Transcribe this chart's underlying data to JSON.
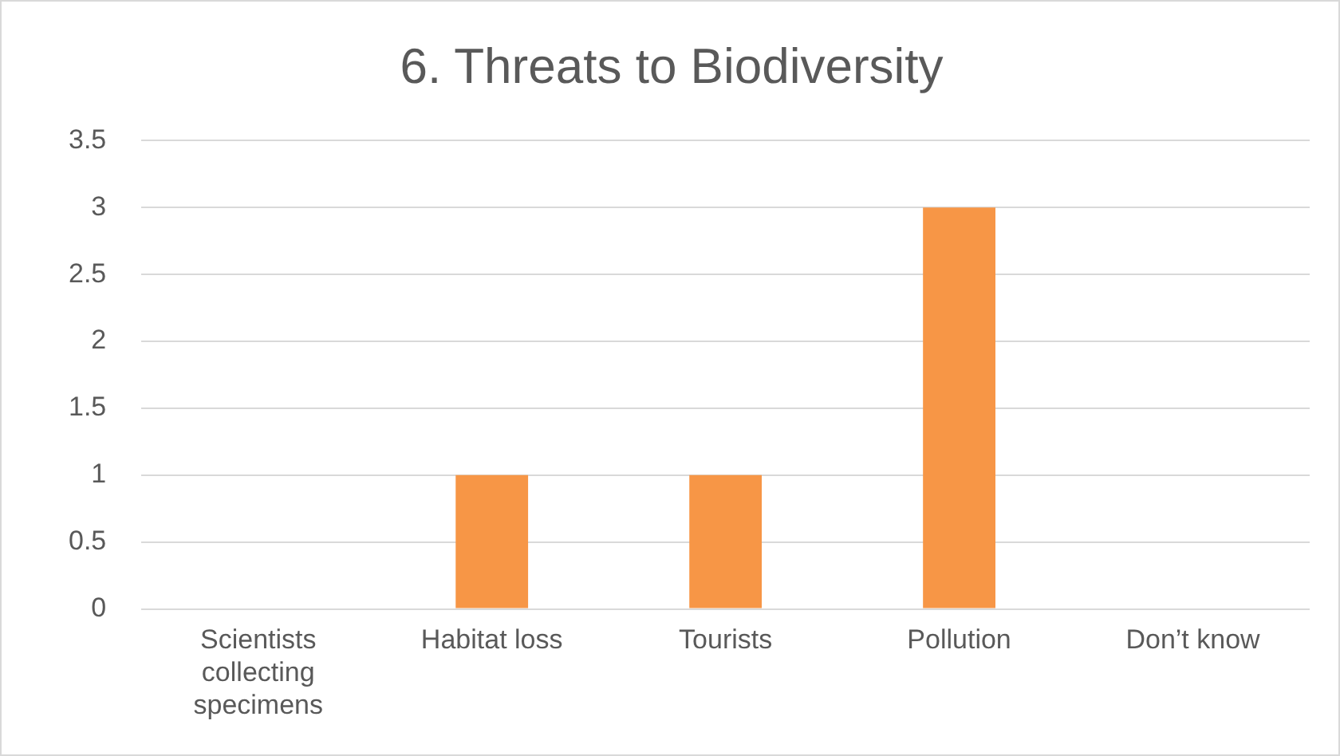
{
  "chart_data": {
    "type": "bar",
    "title": "6. Threats to Biodiversity",
    "categories": [
      "Scientists collecting specimens",
      "Habitat loss",
      "Tourists",
      "Pollution",
      "Don’t know"
    ],
    "values": [
      0,
      1,
      1,
      3,
      0
    ],
    "color": "#f79646",
    "ylim": [
      0,
      3.5
    ],
    "yticks": [
      0,
      0.5,
      1,
      1.5,
      2,
      2.5,
      3,
      3.5
    ],
    "grid": "y"
  }
}
